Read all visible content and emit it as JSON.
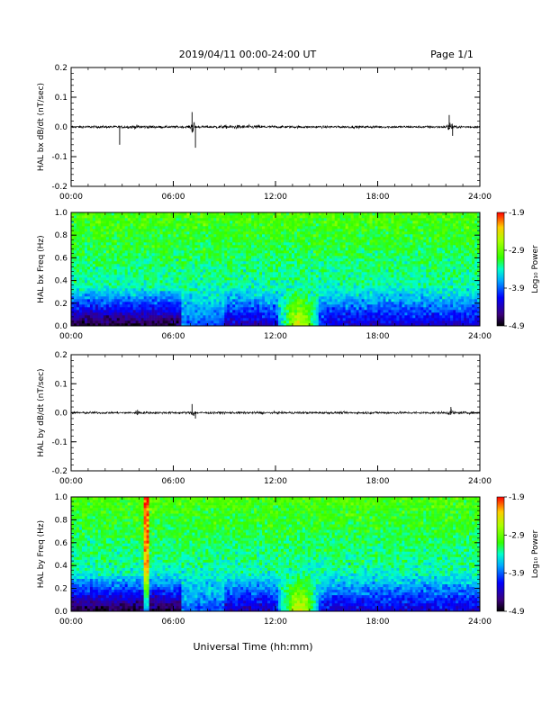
{
  "header": {
    "title": "2019/04/11  00:00-24:00 UT",
    "page": "Page 1/1"
  },
  "xaxis_label": "Universal Time (hh:mm)",
  "colorbar": {
    "label": "Log₁₀ Power",
    "ticks": [
      "-1.9",
      "-2.9",
      "-3.9",
      "-4.9"
    ],
    "range": [
      -4.9,
      -1.9
    ]
  },
  "chart_data": [
    {
      "type": "line",
      "ylabel": "HAL bx dB/dt (nT/sec)",
      "xlim": [
        0,
        24
      ],
      "ylim": [
        -0.2,
        0.2
      ],
      "yticks": [
        "0.2",
        "0.1",
        "0.0",
        "-0.1",
        "-0.2"
      ],
      "xticks": [
        "00:00",
        "06:00",
        "12:00",
        "18:00",
        "24:00"
      ],
      "series": [
        {
          "x": [
            0,
            2.85,
            7.1,
            7.3,
            12,
            22.2,
            22.4,
            24
          ],
          "values": [
            0.0,
            -0.06,
            0.05,
            -0.07,
            0.0,
            0.04,
            -0.03,
            0.0
          ]
        }
      ],
      "grid": false
    },
    {
      "type": "heatmap",
      "ylabel": "HAL bx Freq (Hz)",
      "xlim": [
        0,
        24
      ],
      "ylim": [
        0,
        1.0
      ],
      "yticks": [
        "1.0",
        "0.8",
        "0.6",
        "0.4",
        "0.2",
        "0.0"
      ],
      "xticks": [
        "00:00",
        "06:00",
        "12:00",
        "18:00",
        "24:00"
      ],
      "value_range": [
        -4.9,
        -1.9
      ]
    },
    {
      "type": "line",
      "ylabel": "HAL by dB/dt (nT/sec)",
      "xlim": [
        0,
        24
      ],
      "ylim": [
        -0.2,
        0.2
      ],
      "yticks": [
        "0.2",
        "0.1",
        "0.0",
        "-0.1",
        "-0.2"
      ],
      "xticks": [
        "00:00",
        "06:00",
        "12:00",
        "18:00",
        "24:00"
      ],
      "series": [
        {
          "x": [
            0,
            3.9,
            7.1,
            7.3,
            12,
            22.3,
            24
          ],
          "values": [
            0.0,
            0.01,
            0.03,
            -0.02,
            0.0,
            0.02,
            0.0
          ]
        }
      ],
      "grid": false
    },
    {
      "type": "heatmap",
      "ylabel": "HAL by Freq (Hz)",
      "xlim": [
        0,
        24
      ],
      "ylim": [
        0,
        1.0
      ],
      "yticks": [
        "1.0",
        "0.8",
        "0.6",
        "0.4",
        "0.2",
        "0.0"
      ],
      "xticks": [
        "00:00",
        "06:00",
        "12:00",
        "18:00",
        "24:00"
      ],
      "value_range": [
        -4.9,
        -1.9
      ]
    }
  ]
}
